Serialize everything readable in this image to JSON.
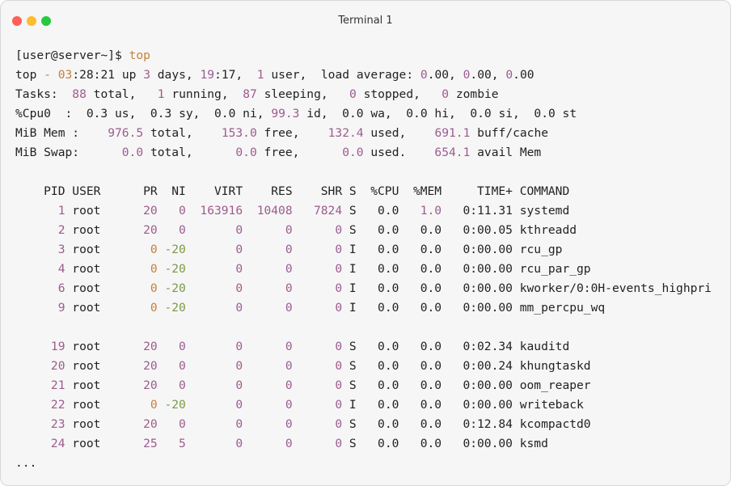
{
  "window": {
    "title": "Terminal 1"
  },
  "prompt": {
    "user": "[user@server~]$",
    "command": "top"
  },
  "summary": [
    [
      [
        "top ",
        "p"
      ],
      [
        "- 03",
        "o"
      ],
      [
        ":28:21 up ",
        "p"
      ],
      [
        "3",
        "n"
      ],
      [
        " days, ",
        "p"
      ],
      [
        "19",
        "n"
      ],
      [
        ":17,  ",
        "p"
      ],
      [
        "1",
        "n"
      ],
      [
        " user,  load average: ",
        "p"
      ],
      [
        "0",
        "n"
      ],
      [
        ".00, ",
        "p"
      ],
      [
        "0",
        "n"
      ],
      [
        ".00, ",
        "p"
      ],
      [
        "0",
        "n"
      ],
      [
        ".00",
        "p"
      ]
    ],
    [
      [
        "Tasks:  ",
        "p"
      ],
      [
        "88",
        "n"
      ],
      [
        " total,   ",
        "p"
      ],
      [
        "1",
        "n"
      ],
      [
        " running,  ",
        "p"
      ],
      [
        "87",
        "n"
      ],
      [
        " sleeping,   ",
        "p"
      ],
      [
        "0",
        "n"
      ],
      [
        " stopped,   ",
        "p"
      ],
      [
        "0",
        "n"
      ],
      [
        " zombie",
        "p"
      ]
    ],
    [
      [
        "%Cpu0  :  0.3 us,  0.3 sy,  0.0 ni, ",
        "p"
      ],
      [
        "99.3",
        "n"
      ],
      [
        " id,  0.0 wa,  0.0 hi,  0.0 si,  0.0 st",
        "p"
      ]
    ],
    [
      [
        "MiB Mem :    ",
        "p"
      ],
      [
        "976.5",
        "n"
      ],
      [
        " total,    ",
        "p"
      ],
      [
        "153.0",
        "n"
      ],
      [
        " free,    ",
        "p"
      ],
      [
        "132.4",
        "n"
      ],
      [
        " used,    ",
        "p"
      ],
      [
        "691.1",
        "n"
      ],
      [
        " buff/cache",
        "p"
      ]
    ],
    [
      [
        "MiB Swap:      ",
        "p"
      ],
      [
        "0.0",
        "n"
      ],
      [
        " total,      ",
        "p"
      ],
      [
        "0.0",
        "n"
      ],
      [
        " free,      ",
        "p"
      ],
      [
        "0.0",
        "n"
      ],
      [
        " used.    ",
        "p"
      ],
      [
        "654.1",
        "n"
      ],
      [
        " avail Mem",
        "p"
      ]
    ]
  ],
  "table": {
    "header": [
      "PID",
      "USER",
      "PR",
      "NI",
      "VIRT",
      "RES",
      "SHR",
      "S",
      "%CPU",
      "%MEM",
      "TIME+",
      "COMMAND"
    ],
    "groups": [
      [
        [
          [
            "1",
            "n"
          ],
          [
            "root",
            "p"
          ],
          [
            "20",
            "n"
          ],
          [
            "0",
            "n"
          ],
          [
            "163916",
            "n"
          ],
          [
            "10408",
            "n"
          ],
          [
            "7824",
            "n"
          ],
          [
            "S",
            "p"
          ],
          [
            "0.0",
            "p"
          ],
          [
            "1.0",
            "n"
          ],
          [
            "0:11.31",
            "p"
          ],
          [
            "systemd",
            "p"
          ]
        ],
        [
          [
            "2",
            "n"
          ],
          [
            "root",
            "p"
          ],
          [
            "20",
            "n"
          ],
          [
            "0",
            "n"
          ],
          [
            "0",
            "n"
          ],
          [
            "0",
            "n"
          ],
          [
            "0",
            "n"
          ],
          [
            "S",
            "p"
          ],
          [
            "0.0",
            "p"
          ],
          [
            "0.0",
            "p"
          ],
          [
            "0:00.05",
            "p"
          ],
          [
            "kthreadd",
            "p"
          ]
        ],
        [
          [
            "3",
            "n"
          ],
          [
            "root",
            "p"
          ],
          [
            "0",
            "o"
          ],
          [
            "-20",
            "g"
          ],
          [
            "0",
            "n"
          ],
          [
            "0",
            "n"
          ],
          [
            "0",
            "n"
          ],
          [
            "I",
            "p"
          ],
          [
            "0.0",
            "p"
          ],
          [
            "0.0",
            "p"
          ],
          [
            "0:00.00",
            "p"
          ],
          [
            "rcu_gp",
            "p"
          ]
        ],
        [
          [
            "4",
            "n"
          ],
          [
            "root",
            "p"
          ],
          [
            "0",
            "o"
          ],
          [
            "-20",
            "g"
          ],
          [
            "0",
            "n"
          ],
          [
            "0",
            "n"
          ],
          [
            "0",
            "n"
          ],
          [
            "I",
            "p"
          ],
          [
            "0.0",
            "p"
          ],
          [
            "0.0",
            "p"
          ],
          [
            "0:00.00",
            "p"
          ],
          [
            "rcu_par_gp",
            "p"
          ]
        ],
        [
          [
            "6",
            "n"
          ],
          [
            "root",
            "p"
          ],
          [
            "0",
            "o"
          ],
          [
            "-20",
            "g"
          ],
          [
            "0",
            "n"
          ],
          [
            "0",
            "n"
          ],
          [
            "0",
            "n"
          ],
          [
            "I",
            "p"
          ],
          [
            "0.0",
            "p"
          ],
          [
            "0.0",
            "p"
          ],
          [
            "0:00.00",
            "p"
          ],
          [
            "kworker/0:0H-events_highpri",
            "p"
          ]
        ],
        [
          [
            "9",
            "n"
          ],
          [
            "root",
            "p"
          ],
          [
            "0",
            "o"
          ],
          [
            "-20",
            "g"
          ],
          [
            "0",
            "n"
          ],
          [
            "0",
            "n"
          ],
          [
            "0",
            "n"
          ],
          [
            "I",
            "p"
          ],
          [
            "0.0",
            "p"
          ],
          [
            "0.0",
            "p"
          ],
          [
            "0:00.00",
            "p"
          ],
          [
            "mm_percpu_wq",
            "p"
          ]
        ]
      ],
      [
        [
          [
            "19",
            "n"
          ],
          [
            "root",
            "p"
          ],
          [
            "20",
            "n"
          ],
          [
            "0",
            "n"
          ],
          [
            "0",
            "n"
          ],
          [
            "0",
            "n"
          ],
          [
            "0",
            "n"
          ],
          [
            "S",
            "p"
          ],
          [
            "0.0",
            "p"
          ],
          [
            "0.0",
            "p"
          ],
          [
            "0:02.34",
            "p"
          ],
          [
            "kauditd",
            "p"
          ]
        ],
        [
          [
            "20",
            "n"
          ],
          [
            "root",
            "p"
          ],
          [
            "20",
            "n"
          ],
          [
            "0",
            "n"
          ],
          [
            "0",
            "n"
          ],
          [
            "0",
            "n"
          ],
          [
            "0",
            "n"
          ],
          [
            "S",
            "p"
          ],
          [
            "0.0",
            "p"
          ],
          [
            "0.0",
            "p"
          ],
          [
            "0:00.24",
            "p"
          ],
          [
            "khungtaskd",
            "p"
          ]
        ],
        [
          [
            "21",
            "n"
          ],
          [
            "root",
            "p"
          ],
          [
            "20",
            "n"
          ],
          [
            "0",
            "n"
          ],
          [
            "0",
            "n"
          ],
          [
            "0",
            "n"
          ],
          [
            "0",
            "n"
          ],
          [
            "S",
            "p"
          ],
          [
            "0.0",
            "p"
          ],
          [
            "0.0",
            "p"
          ],
          [
            "0:00.00",
            "p"
          ],
          [
            "oom_reaper",
            "p"
          ]
        ],
        [
          [
            "22",
            "n"
          ],
          [
            "root",
            "p"
          ],
          [
            "0",
            "o"
          ],
          [
            "-20",
            "g"
          ],
          [
            "0",
            "n"
          ],
          [
            "0",
            "n"
          ],
          [
            "0",
            "n"
          ],
          [
            "I",
            "p"
          ],
          [
            "0.0",
            "p"
          ],
          [
            "0.0",
            "p"
          ],
          [
            "0:00.00",
            "p"
          ],
          [
            "writeback",
            "p"
          ]
        ],
        [
          [
            "23",
            "n"
          ],
          [
            "root",
            "p"
          ],
          [
            "20",
            "n"
          ],
          [
            "0",
            "n"
          ],
          [
            "0",
            "n"
          ],
          [
            "0",
            "n"
          ],
          [
            "0",
            "n"
          ],
          [
            "S",
            "p"
          ],
          [
            "0.0",
            "p"
          ],
          [
            "0.0",
            "p"
          ],
          [
            "0:12.84",
            "p"
          ],
          [
            "kcompactd0",
            "p"
          ]
        ],
        [
          [
            "24",
            "n"
          ],
          [
            "root",
            "p"
          ],
          [
            "25",
            "n"
          ],
          [
            "5",
            "n"
          ],
          [
            "0",
            "n"
          ],
          [
            "0",
            "n"
          ],
          [
            "0",
            "n"
          ],
          [
            "S",
            "p"
          ],
          [
            "0.0",
            "p"
          ],
          [
            "0.0",
            "p"
          ],
          [
            "0:00.00",
            "p"
          ],
          [
            "ksmd",
            "p"
          ]
        ]
      ]
    ]
  },
  "more": "..."
}
